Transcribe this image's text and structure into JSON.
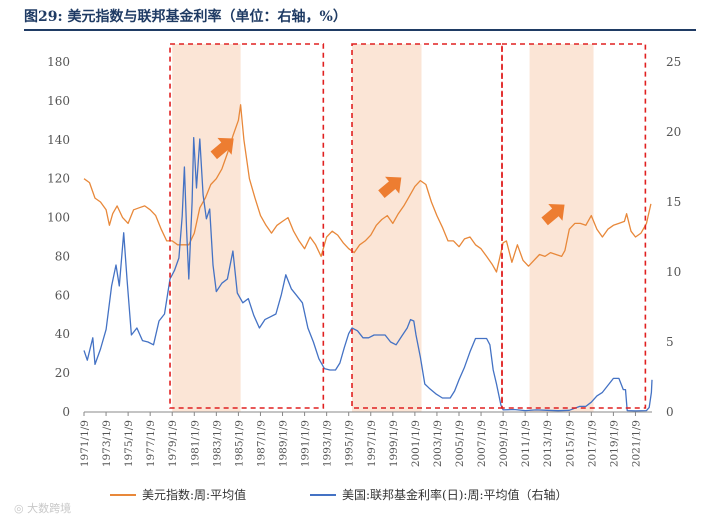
{
  "header": {
    "title": "图29:  美元指数与联邦基金利率（单位：右轴，%）"
  },
  "watermark": "◎ 大数跨境",
  "colors": {
    "usd": "#E8883A",
    "ffr": "#4472C4",
    "shade": "#FBE5D6",
    "box": "#E02020",
    "arrow": "#ED7D31",
    "axis": "#555555",
    "rule": "#1f3b64"
  },
  "chart_data": {
    "type": "line",
    "y_left": {
      "min": 0,
      "max": 180,
      "ticks": [
        "0",
        "20",
        "40",
        "60",
        "80",
        "100",
        "120",
        "140",
        "160",
        "180"
      ]
    },
    "y_right": {
      "min": 0,
      "max": 25,
      "ticks": [
        "0",
        "5",
        "10",
        "15",
        "20",
        "25"
      ]
    },
    "x_range": [
      1971.0,
      2022.5
    ],
    "x_tick_labels": [
      "1971/1/9",
      "1973/1/9",
      "1975/1/9",
      "1977/1/9",
      "1979/1/9",
      "1981/1/9",
      "1983/1/9",
      "1985/1/9",
      "1987/1/9",
      "1989/1/9",
      "1991/1/9",
      "1993/1/9",
      "1995/1/9",
      "1997/1/9",
      "1999/1/9",
      "2001/1/9",
      "2003/1/9",
      "2005/1/9",
      "2007/1/9",
      "2009/1/9",
      "2011/1/9",
      "2013/1/9",
      "2015/1/9",
      "2017/1/9",
      "2019/1/9",
      "2021/1/9"
    ],
    "shaded_periods": [
      [
        1979.0,
        1985.2
      ],
      [
        1995.3,
        2001.6
      ],
      [
        2011.4,
        2017.2
      ]
    ],
    "boxed_periods": [
      [
        1978.8,
        1992.7
      ],
      [
        1995.3,
        2008.9
      ],
      [
        2008.9,
        2021.9
      ]
    ],
    "up_arrows_at": [
      [
        1983.6,
        136
      ],
      [
        1998.8,
        116
      ],
      [
        2013.6,
        102
      ]
    ],
    "series": [
      {
        "name": "美元指数:周:平均值",
        "axis": "left",
        "points": [
          [
            1971.0,
            120
          ],
          [
            1971.5,
            118
          ],
          [
            1972.0,
            110
          ],
          [
            1972.5,
            108
          ],
          [
            1973.0,
            104
          ],
          [
            1973.3,
            96
          ],
          [
            1973.6,
            102
          ],
          [
            1974.0,
            106
          ],
          [
            1974.5,
            100
          ],
          [
            1975.0,
            97
          ],
          [
            1975.5,
            104
          ],
          [
            1976.0,
            105
          ],
          [
            1976.5,
            106
          ],
          [
            1977.0,
            104
          ],
          [
            1977.5,
            101
          ],
          [
            1978.0,
            94
          ],
          [
            1978.5,
            88
          ],
          [
            1979.0,
            88
          ],
          [
            1979.5,
            86
          ],
          [
            1980.0,
            86
          ],
          [
            1980.5,
            86
          ],
          [
            1981.0,
            92
          ],
          [
            1981.5,
            105
          ],
          [
            1982.0,
            110
          ],
          [
            1982.5,
            117
          ],
          [
            1983.0,
            120
          ],
          [
            1983.5,
            125
          ],
          [
            1984.0,
            133
          ],
          [
            1984.5,
            142
          ],
          [
            1985.0,
            150
          ],
          [
            1985.2,
            158
          ],
          [
            1985.5,
            140
          ],
          [
            1986.0,
            120
          ],
          [
            1986.5,
            110
          ],
          [
            1987.0,
            101
          ],
          [
            1987.5,
            96
          ],
          [
            1988.0,
            92
          ],
          [
            1988.5,
            96
          ],
          [
            1989.0,
            98
          ],
          [
            1989.5,
            100
          ],
          [
            1990.0,
            93
          ],
          [
            1990.5,
            88
          ],
          [
            1991.0,
            84
          ],
          [
            1991.5,
            90
          ],
          [
            1992.0,
            86
          ],
          [
            1992.5,
            80
          ],
          [
            1993.0,
            90
          ],
          [
            1993.5,
            93
          ],
          [
            1994.0,
            91
          ],
          [
            1994.5,
            87
          ],
          [
            1995.0,
            84
          ],
          [
            1995.5,
            82
          ],
          [
            1996.0,
            86
          ],
          [
            1996.5,
            88
          ],
          [
            1997.0,
            91
          ],
          [
            1997.5,
            96
          ],
          [
            1998.0,
            99
          ],
          [
            1998.5,
            101
          ],
          [
            1999.0,
            97
          ],
          [
            1999.5,
            102
          ],
          [
            2000.0,
            106
          ],
          [
            2000.5,
            111
          ],
          [
            2001.0,
            116
          ],
          [
            2001.5,
            119
          ],
          [
            2002.0,
            117
          ],
          [
            2002.5,
            108
          ],
          [
            2003.0,
            101
          ],
          [
            2003.5,
            95
          ],
          [
            2004.0,
            88
          ],
          [
            2004.5,
            88
          ],
          [
            2005.0,
            85
          ],
          [
            2005.5,
            89
          ],
          [
            2006.0,
            90
          ],
          [
            2006.5,
            86
          ],
          [
            2007.0,
            84
          ],
          [
            2007.5,
            80
          ],
          [
            2008.0,
            76
          ],
          [
            2008.4,
            72
          ],
          [
            2008.8,
            82
          ],
          [
            2009.0,
            87
          ],
          [
            2009.3,
            88
          ],
          [
            2009.8,
            77
          ],
          [
            2010.3,
            86
          ],
          [
            2010.8,
            78
          ],
          [
            2011.3,
            75
          ],
          [
            2011.8,
            78
          ],
          [
            2012.3,
            81
          ],
          [
            2012.8,
            80
          ],
          [
            2013.3,
            82
          ],
          [
            2013.8,
            81
          ],
          [
            2014.3,
            80
          ],
          [
            2014.6,
            83
          ],
          [
            2015.0,
            94
          ],
          [
            2015.5,
            97
          ],
          [
            2016.0,
            97
          ],
          [
            2016.5,
            96
          ],
          [
            2017.0,
            101
          ],
          [
            2017.5,
            94
          ],
          [
            2018.0,
            90
          ],
          [
            2018.5,
            94
          ],
          [
            2019.0,
            96
          ],
          [
            2019.5,
            97
          ],
          [
            2020.0,
            98
          ],
          [
            2020.2,
            102
          ],
          [
            2020.6,
            93
          ],
          [
            2021.0,
            90
          ],
          [
            2021.5,
            92
          ],
          [
            2022.0,
            97
          ],
          [
            2022.4,
            107
          ]
        ]
      },
      {
        "name": "美国:联邦基金利率(日):周:平均值（右轴）",
        "axis": "right",
        "points": [
          [
            1971.0,
            4.4
          ],
          [
            1971.3,
            3.7
          ],
          [
            1971.8,
            5.3
          ],
          [
            1972.0,
            3.4
          ],
          [
            1972.5,
            4.5
          ],
          [
            1973.0,
            5.9
          ],
          [
            1973.5,
            9.0
          ],
          [
            1973.9,
            10.5
          ],
          [
            1974.2,
            9.0
          ],
          [
            1974.6,
            12.8
          ],
          [
            1974.9,
            9.5
          ],
          [
            1975.3,
            5.5
          ],
          [
            1975.8,
            6.0
          ],
          [
            1976.3,
            5.1
          ],
          [
            1976.8,
            5.0
          ],
          [
            1977.3,
            4.8
          ],
          [
            1977.8,
            6.5
          ],
          [
            1978.3,
            7.0
          ],
          [
            1978.8,
            9.5
          ],
          [
            1979.2,
            10.1
          ],
          [
            1979.6,
            11.0
          ],
          [
            1979.9,
            14.0
          ],
          [
            1980.1,
            17.5
          ],
          [
            1980.3,
            13.0
          ],
          [
            1980.5,
            9.5
          ],
          [
            1980.8,
            15.0
          ],
          [
            1980.95,
            19.6
          ],
          [
            1981.2,
            16.0
          ],
          [
            1981.5,
            19.5
          ],
          [
            1981.8,
            15.5
          ],
          [
            1982.1,
            13.8
          ],
          [
            1982.4,
            14.5
          ],
          [
            1982.7,
            10.5
          ],
          [
            1983.0,
            8.6
          ],
          [
            1983.5,
            9.2
          ],
          [
            1984.0,
            9.5
          ],
          [
            1984.5,
            11.5
          ],
          [
            1984.9,
            8.5
          ],
          [
            1985.4,
            7.8
          ],
          [
            1985.9,
            8.1
          ],
          [
            1986.4,
            6.9
          ],
          [
            1986.9,
            6.0
          ],
          [
            1987.4,
            6.6
          ],
          [
            1987.9,
            6.8
          ],
          [
            1988.4,
            7.0
          ],
          [
            1988.9,
            8.4
          ],
          [
            1989.3,
            9.8
          ],
          [
            1989.8,
            8.8
          ],
          [
            1990.3,
            8.3
          ],
          [
            1990.8,
            7.8
          ],
          [
            1991.3,
            6.0
          ],
          [
            1991.8,
            5.0
          ],
          [
            1992.3,
            3.8
          ],
          [
            1992.8,
            3.1
          ],
          [
            1993.3,
            3.0
          ],
          [
            1993.8,
            3.0
          ],
          [
            1994.2,
            3.5
          ],
          [
            1994.6,
            4.6
          ],
          [
            1995.0,
            5.6
          ],
          [
            1995.3,
            6.0
          ],
          [
            1995.8,
            5.8
          ],
          [
            1996.3,
            5.3
          ],
          [
            1996.8,
            5.3
          ],
          [
            1997.3,
            5.5
          ],
          [
            1997.8,
            5.5
          ],
          [
            1998.3,
            5.5
          ],
          [
            1998.8,
            5.0
          ],
          [
            1999.3,
            4.8
          ],
          [
            1999.8,
            5.4
          ],
          [
            2000.3,
            6.0
          ],
          [
            2000.6,
            6.6
          ],
          [
            2000.9,
            6.5
          ],
          [
            2001.1,
            5.5
          ],
          [
            2001.5,
            3.9
          ],
          [
            2001.9,
            2.0
          ],
          [
            2002.3,
            1.7
          ],
          [
            2002.9,
            1.3
          ],
          [
            2003.5,
            1.0
          ],
          [
            2004.2,
            1.0
          ],
          [
            2004.6,
            1.5
          ],
          [
            2005.0,
            2.3
          ],
          [
            2005.5,
            3.2
          ],
          [
            2006.0,
            4.3
          ],
          [
            2006.5,
            5.25
          ],
          [
            2007.0,
            5.25
          ],
          [
            2007.5,
            5.25
          ],
          [
            2007.8,
            4.8
          ],
          [
            2008.1,
            3.0
          ],
          [
            2008.4,
            2.0
          ],
          [
            2008.8,
            0.5
          ],
          [
            2009.0,
            0.15
          ],
          [
            2010.0,
            0.18
          ],
          [
            2011.0,
            0.1
          ],
          [
            2012.0,
            0.15
          ],
          [
            2013.0,
            0.12
          ],
          [
            2014.0,
            0.09
          ],
          [
            2015.0,
            0.12
          ],
          [
            2015.95,
            0.4
          ],
          [
            2016.5,
            0.4
          ],
          [
            2017.0,
            0.7
          ],
          [
            2017.5,
            1.15
          ],
          [
            2018.0,
            1.4
          ],
          [
            2018.5,
            1.9
          ],
          [
            2019.0,
            2.4
          ],
          [
            2019.5,
            2.4
          ],
          [
            2019.9,
            1.6
          ],
          [
            2020.1,
            1.6
          ],
          [
            2020.25,
            0.1
          ],
          [
            2021.0,
            0.08
          ],
          [
            2022.0,
            0.1
          ],
          [
            2022.25,
            0.33
          ],
          [
            2022.45,
            1.4
          ],
          [
            2022.5,
            2.3
          ]
        ]
      }
    ]
  },
  "legend": {
    "usd_label": "美元指数:周:平均值",
    "ffr_label": "美国:联邦基金利率(日):周:平均值（右轴）"
  }
}
